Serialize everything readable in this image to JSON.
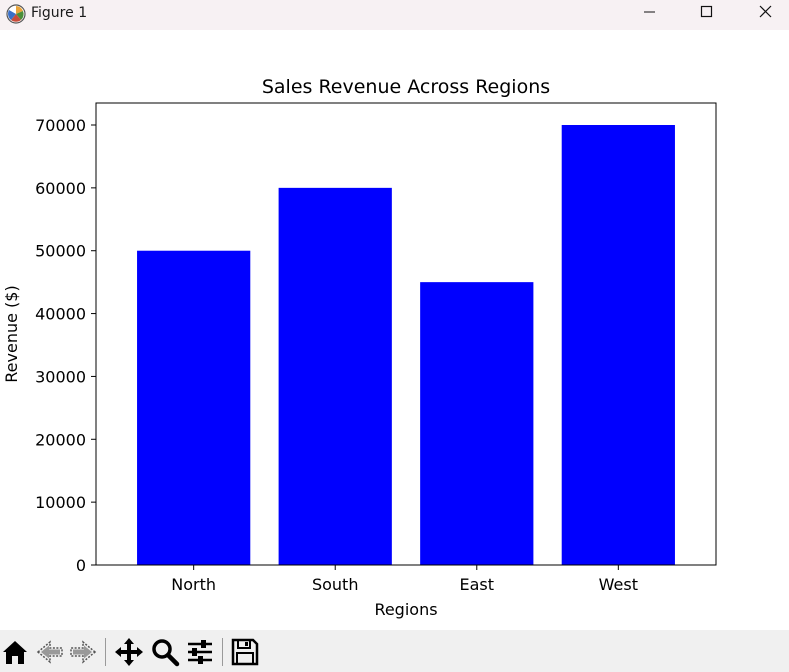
{
  "window": {
    "title": "Figure 1",
    "app_icon": "matplotlib-icon",
    "controls": [
      "minimize-icon",
      "maximize-icon",
      "close-icon"
    ]
  },
  "toolbar": {
    "buttons": [
      "home-icon",
      "back-arrow-icon",
      "forward-arrow-icon",
      "pan-icon",
      "zoom-icon",
      "configure-subplots-icon",
      "save-icon"
    ]
  },
  "chart_data": {
    "type": "bar",
    "title": "Sales Revenue Across Regions",
    "xlabel": "Regions",
    "ylabel": "Revenue ($)",
    "categories": [
      "North",
      "South",
      "East",
      "West"
    ],
    "values": [
      50000,
      60000,
      45000,
      70000
    ],
    "ylim": [
      0,
      73500
    ],
    "yticks": [
      0,
      10000,
      20000,
      30000,
      40000,
      50000,
      60000,
      70000
    ],
    "bar_color": "#0000ff",
    "grid": false,
    "legend": "none"
  }
}
